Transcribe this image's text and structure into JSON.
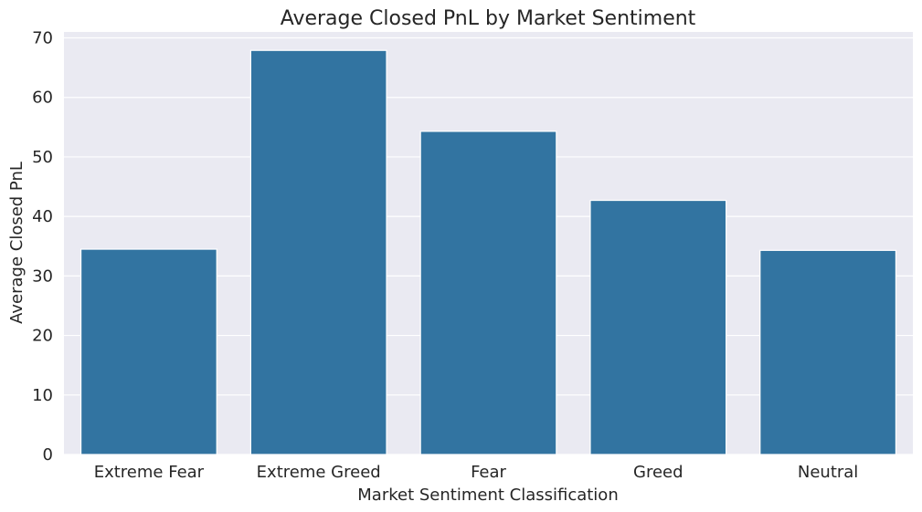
{
  "chart_data": {
    "type": "bar",
    "title": "Average Closed PnL by Market Sentiment",
    "xlabel": "Market Sentiment Classification",
    "ylabel": "Average Closed PnL",
    "categories": [
      "Extreme Fear",
      "Extreme Greed",
      "Fear",
      "Greed",
      "Neutral"
    ],
    "values": [
      34.5,
      67.9,
      54.3,
      42.7,
      34.3
    ],
    "ylim": [
      0,
      71
    ],
    "yticks": [
      0,
      10,
      20,
      30,
      40,
      50,
      60,
      70
    ],
    "grid": true,
    "bar_color": "#3274a1",
    "background_color": "#eaeaf2"
  }
}
